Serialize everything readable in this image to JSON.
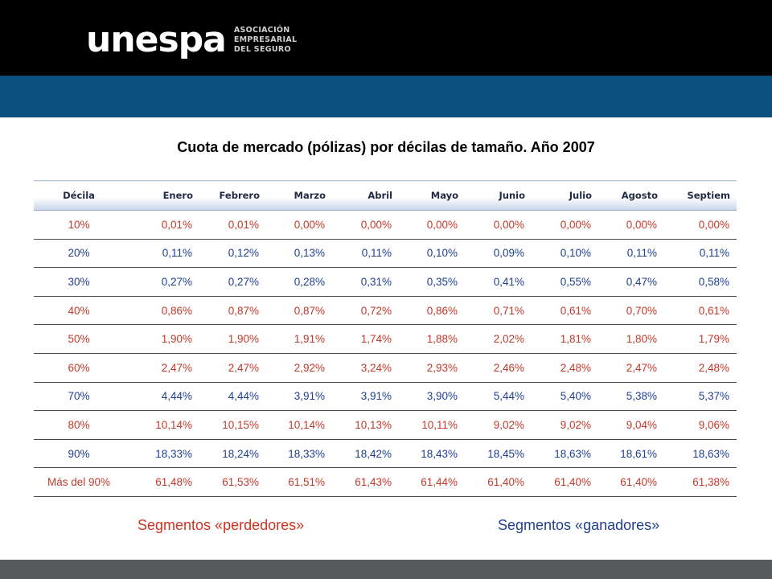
{
  "header": {
    "brand": "unespa",
    "brand_sub": [
      "ASOCIACIÓN",
      "EMPRESARIAL",
      "DEL SEGURO"
    ]
  },
  "colors": {
    "top_bar": "#000000",
    "accent_bar": "#0b4f7f",
    "bottom_bar": "#58595b",
    "red_text": "#c0392b",
    "blue_text": "#1f3f8f"
  },
  "slide": {
    "title": "Cuota de mercado (pólizas) por décilas de tamaño. Año 2007"
  },
  "table": {
    "columns": [
      "Décila",
      "Enero",
      "Febrero",
      "Marzo",
      "Abril",
      "Mayo",
      "Junio",
      "Julio",
      "Agosto",
      "Septiem"
    ],
    "rows": [
      [
        "10%",
        "0,01%",
        "0,01%",
        "0,00%",
        "0,00%",
        "0,00%",
        "0,00%",
        "0,00%",
        "0,00%",
        "0,00%"
      ],
      [
        "20%",
        "0,11%",
        "0,12%",
        "0,13%",
        "0,11%",
        "0,10%",
        "0,09%",
        "0,10%",
        "0,11%",
        "0,11%"
      ],
      [
        "30%",
        "0,27%",
        "0,27%",
        "0,28%",
        "0,31%",
        "0,35%",
        "0,41%",
        "0,55%",
        "0,47%",
        "0,58%"
      ],
      [
        "40%",
        "0,86%",
        "0,87%",
        "0,87%",
        "0,72%",
        "0,86%",
        "0,71%",
        "0,61%",
        "0,70%",
        "0,61%"
      ],
      [
        "50%",
        "1,90%",
        "1,90%",
        "1,91%",
        "1,74%",
        "1,88%",
        "2,02%",
        "1,81%",
        "1,80%",
        "1,79%"
      ],
      [
        "60%",
        "2,47%",
        "2,47%",
        "2,92%",
        "3,24%",
        "2,93%",
        "2,46%",
        "2,48%",
        "2,47%",
        "2,48%"
      ],
      [
        "70%",
        "4,44%",
        "4,44%",
        "3,91%",
        "3,91%",
        "3,90%",
        "5,44%",
        "5,40%",
        "5,38%",
        "5,37%"
      ],
      [
        "80%",
        "10,14%",
        "10,15%",
        "10,14%",
        "10,13%",
        "10,11%",
        "9,02%",
        "9,02%",
        "9,04%",
        "9,06%"
      ],
      [
        "90%",
        "18,33%",
        "18,24%",
        "18,33%",
        "18,42%",
        "18,43%",
        "18,45%",
        "18,63%",
        "18,61%",
        "18,63%"
      ],
      [
        "Más del 90%",
        "61,48%",
        "61,53%",
        "61,51%",
        "61,43%",
        "61,44%",
        "61,40%",
        "61,40%",
        "61,40%",
        "61,38%"
      ]
    ],
    "row_colors": [
      "red",
      "blue",
      "blue",
      "red",
      "red",
      "red",
      "blue",
      "red",
      "blue",
      "red"
    ]
  },
  "segments": {
    "losers": "Segmentos «perdedores»",
    "winners": "Segmentos «ganadores»"
  }
}
